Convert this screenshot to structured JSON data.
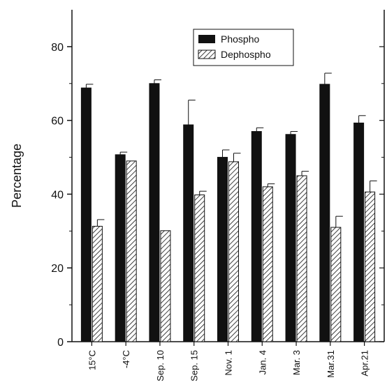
{
  "chart_data": {
    "type": "bar",
    "ylabel": "Percentage",
    "xlabel": "",
    "ylim": [
      0,
      90
    ],
    "yticks": [
      0,
      20,
      40,
      60,
      80
    ],
    "categories": [
      "15°C",
      "-4°C",
      "Sep. 10",
      "Sep. 15",
      "Nov. 1",
      "Jan. 4",
      "Mar. 3",
      "Mar.31",
      "Apr.21"
    ],
    "series": [
      {
        "name": "Phospho",
        "fill": "#111111",
        "values": [
          68.8,
          50.7,
          70.0,
          58.8,
          50.0,
          57.0,
          56.2,
          69.8,
          59.3
        ],
        "errors": [
          1.0,
          0.7,
          1.0,
          6.7,
          2.0,
          1.0,
          0.8,
          3.0,
          2.0
        ]
      },
      {
        "name": "Dephospho",
        "fill": "hatch",
        "values": [
          31.3,
          49.0,
          30.1,
          39.8,
          48.8,
          42.0,
          45.0,
          31.0,
          40.6
        ],
        "errors": [
          1.8,
          0.0,
          0.0,
          1.0,
          2.3,
          0.8,
          1.2,
          3.0,
          3.0
        ]
      }
    ],
    "legend": "top-center",
    "grid": false
  }
}
